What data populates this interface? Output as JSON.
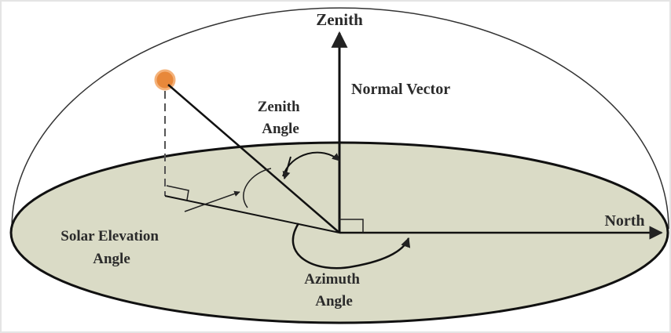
{
  "labels": {
    "zenith": "Zenith",
    "normal_vector": "Normal Vector",
    "zenith_angle": [
      "Zenith",
      "Angle"
    ],
    "north": "North",
    "solar_elevation_angle": [
      "Solar Elevation",
      "Angle"
    ],
    "azimuth_angle": [
      "Azimuth",
      "Angle"
    ]
  }
}
